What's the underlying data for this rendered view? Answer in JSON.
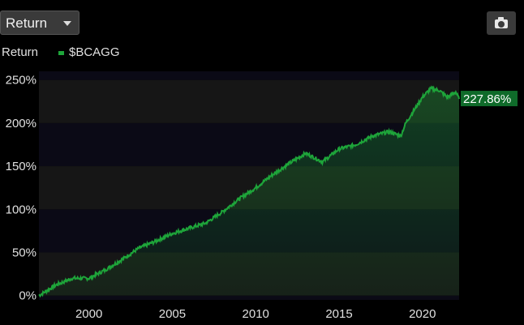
{
  "toolbar": {
    "metric_label": "Return"
  },
  "legend": {
    "title": "Return",
    "series_name": "$BCAGG"
  },
  "colors": {
    "series": "#1ea53a",
    "band_dark": "#0b0a16",
    "band_light": "#161616",
    "label_bg": "#0f6b2a"
  },
  "chart_data": {
    "type": "area",
    "title": "",
    "xlabel": "",
    "ylabel": "",
    "x_ticks": [
      "2000",
      "2005",
      "2010",
      "2015",
      "2020"
    ],
    "y_ticks": [
      "0%",
      "50%",
      "100%",
      "150%",
      "200%",
      "250%"
    ],
    "xlim": [
      1997.0,
      2022.2
    ],
    "ylim": [
      -5,
      260
    ],
    "last_value_label": "227.86%",
    "series": [
      {
        "name": "$BCAGG",
        "x": [
          1997.0,
          1998.0,
          1999.0,
          2000.0,
          2001.0,
          2002.0,
          2003.0,
          2004.0,
          2005.0,
          2006.0,
          2007.0,
          2008.0,
          2009.0,
          2010.0,
          2011.0,
          2012.0,
          2013.0,
          2014.0,
          2015.0,
          2016.0,
          2017.0,
          2018.0,
          2018.7,
          2019.0,
          2019.5,
          2020.0,
          2020.5,
          2021.0,
          2021.5,
          2022.0,
          2022.2
        ],
        "y": [
          0,
          12,
          20,
          20,
          30,
          42,
          55,
          63,
          72,
          78,
          84,
          97,
          112,
          125,
          140,
          153,
          165,
          155,
          170,
          175,
          185,
          190,
          185,
          200,
          215,
          230,
          240,
          238,
          230,
          236,
          228
        ]
      }
    ]
  }
}
